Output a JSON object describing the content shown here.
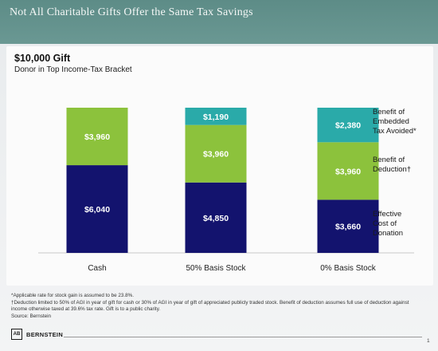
{
  "slide_title": "Not All Charitable Gifts Offer the Same Tax Savings",
  "chart_data": {
    "type": "bar",
    "stacked": true,
    "title": "$10,000 Gift",
    "subtitle": "Donor in Top Income-Tax Bracket",
    "categories": [
      "Cash",
      "50% Basis Stock",
      "0% Basis Stock"
    ],
    "series": [
      {
        "name": "Effective Cost of Donation",
        "values": [
          6040,
          4850,
          3660
        ],
        "labels": [
          "$6,040",
          "$4,850",
          "$3,660"
        ],
        "color": "#13136e"
      },
      {
        "name": "Benefit of Deduction†",
        "values": [
          3960,
          3960,
          3960
        ],
        "labels": [
          "$3,960",
          "$3,960",
          "$3,960"
        ],
        "color": "#8cc23c"
      },
      {
        "name": "Benefit of Embedded Tax Avoided*",
        "values": [
          0,
          1190,
          2380
        ],
        "labels": [
          "",
          "$1,190",
          "$2,380"
        ],
        "color": "#2aaaa9"
      }
    ],
    "legend_lines": [
      [
        "Benefit of",
        "Embedded",
        "Tax Avoided*"
      ],
      [
        "Benefit of",
        "Deduction†"
      ],
      [
        "Effective",
        "Cost of",
        "Donation"
      ]
    ],
    "legend_position": "right",
    "ylim": [
      0,
      10000
    ],
    "grid": false
  },
  "footnotes": [
    "*Applicable rate for stock gain is assumed to be 23.8%.",
    "†Deduction limited to 50% of AGI in year of gift for cash or 30% of AGI in year of gift of appreciated publicly traded stock. Benefit of deduction assumes full use of deduction against",
    "income otherwise taxed at 39.6% tax rate. Gift is to a public charity.",
    "Source: Bernstein"
  ],
  "brand": {
    "logo_text": "AB",
    "name": "BERNSTEIN"
  },
  "page_number": "1"
}
